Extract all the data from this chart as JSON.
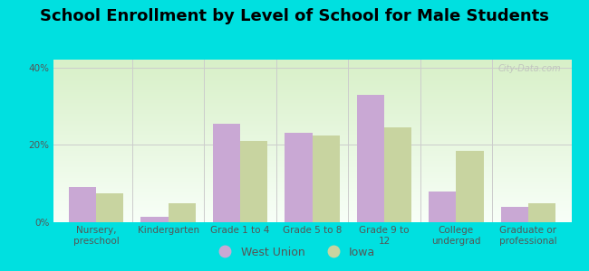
{
  "title": "School Enrollment by Level of School for Male Students",
  "categories": [
    "Nursery,\npreschool",
    "Kindergarten",
    "Grade 1 to 4",
    "Grade 5 to 8",
    "Grade 9 to\n12",
    "College\nundergrad",
    "Graduate or\nprofessional"
  ],
  "west_union": [
    9.0,
    1.5,
    25.5,
    23.0,
    33.0,
    8.0,
    4.0
  ],
  "iowa": [
    7.5,
    5.0,
    21.0,
    22.5,
    24.5,
    18.5,
    5.0
  ],
  "west_union_color": "#c9a8d4",
  "iowa_color": "#c8d4a0",
  "background_color": "#00e0e0",
  "plot_bg_top": "#d8f0c8",
  "plot_bg_bottom": "#f8fff8",
  "ylim": [
    0,
    42
  ],
  "yticks": [
    0,
    20,
    40
  ],
  "ytick_labels": [
    "0%",
    "20%",
    "40%"
  ],
  "bar_width": 0.38,
  "title_fontsize": 13,
  "tick_fontsize": 7.5,
  "legend_fontsize": 9,
  "watermark": "City-Data.com"
}
